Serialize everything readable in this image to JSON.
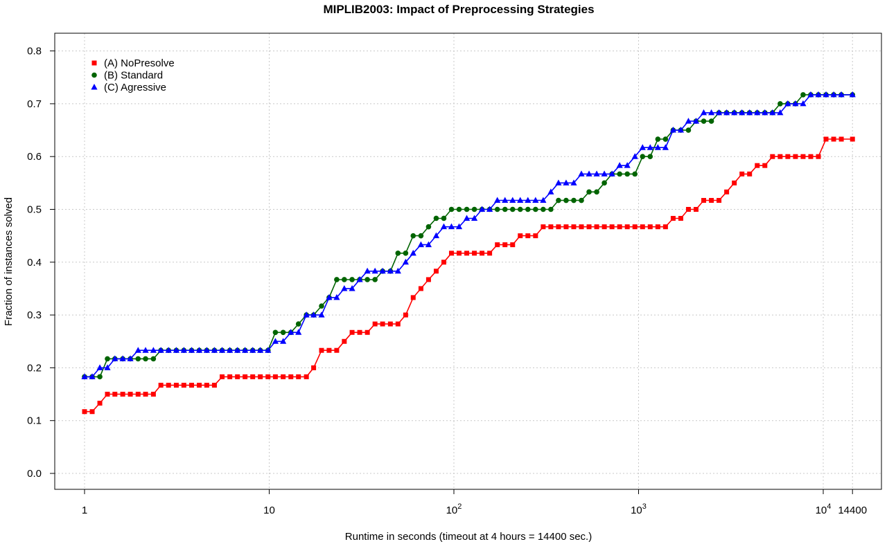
{
  "chart_data": {
    "type": "line",
    "title": "MIPLIB2003: Impact of Preprocessing Strategies",
    "xlabel": "Runtime in seconds (timeout at 4 hours = 14400 sec.)",
    "ylabel": "Fraction of instances solved",
    "x_scale": "log10",
    "xlim": [
      1,
      14400
    ],
    "ylim": [
      0,
      0.8
    ],
    "x_ticks": [
      {
        "value": 1,
        "label": "1"
      },
      {
        "value": 10,
        "label": "10"
      },
      {
        "value": 100,
        "label": "10",
        "sup": "2"
      },
      {
        "value": 1000,
        "label": "10",
        "sup": "3"
      },
      {
        "value": 10000,
        "label": "10",
        "sup": "4"
      },
      {
        "value": 14400,
        "label": "14400"
      }
    ],
    "y_ticks": [
      "0.0",
      "0.1",
      "0.2",
      "0.3",
      "0.4",
      "0.5",
      "0.6",
      "0.7",
      "0.8"
    ],
    "grid": true,
    "legend_position": "top-left",
    "x": [
      1.0,
      1.1,
      1.21,
      1.33,
      1.46,
      1.61,
      1.77,
      1.95,
      2.14,
      2.36,
      2.59,
      2.85,
      3.14,
      3.45,
      3.8,
      4.18,
      4.59,
      5.05,
      5.56,
      6.12,
      6.73,
      7.4,
      8.14,
      8.95,
      9.85,
      10.8,
      11.9,
      13.1,
      14.4,
      15.9,
      17.4,
      19.2,
      21.1,
      23.2,
      25.5,
      28.1,
      30.9,
      34.0,
      37.4,
      41.1,
      45.3,
      49.8,
      54.8,
      60.2,
      66.3,
      72.9,
      80.2,
      88.2,
      97.0,
      106.7,
      117.4,
      129.1,
      142,
      156.2,
      171.9,
      189.1,
      208,
      228.7,
      251.6,
      276.8,
      304.5,
      334.9,
      368.4,
      405.2,
      445.7,
      490.3,
      539.4,
      593.3,
      652.6,
      717.9,
      789.7,
      868.6,
      955.5,
      1051,
      1156,
      1272,
      1399,
      1539,
      1693,
      1862,
      2048,
      2253,
      2479,
      2726,
      2999,
      3299,
      3629,
      3992,
      4391,
      4830,
      5313,
      5844,
      6429,
      7072,
      7779,
      8557,
      9413,
      10354,
      11389,
      12528,
      14400
    ],
    "series": [
      {
        "name": "(A) NoPresolve",
        "color": "#ff0000",
        "marker": "square",
        "values": [
          0.117,
          0.117,
          0.133,
          0.15,
          0.15,
          0.15,
          0.15,
          0.15,
          0.15,
          0.15,
          0.167,
          0.167,
          0.167,
          0.167,
          0.167,
          0.167,
          0.167,
          0.167,
          0.183,
          0.183,
          0.183,
          0.183,
          0.183,
          0.183,
          0.183,
          0.183,
          0.183,
          0.183,
          0.183,
          0.183,
          0.2,
          0.233,
          0.233,
          0.233,
          0.25,
          0.267,
          0.267,
          0.267,
          0.283,
          0.283,
          0.283,
          0.283,
          0.3,
          0.333,
          0.35,
          0.367,
          0.383,
          0.4,
          0.417,
          0.417,
          0.417,
          0.417,
          0.417,
          0.417,
          0.433,
          0.433,
          0.433,
          0.45,
          0.45,
          0.45,
          0.467,
          0.467,
          0.467,
          0.467,
          0.467,
          0.467,
          0.467,
          0.467,
          0.467,
          0.467,
          0.467,
          0.467,
          0.467,
          0.467,
          0.467,
          0.467,
          0.467,
          0.483,
          0.483,
          0.5,
          0.5,
          0.517,
          0.517,
          0.517,
          0.533,
          0.55,
          0.567,
          0.567,
          0.583,
          0.583,
          0.6,
          0.6,
          0.6,
          0.6,
          0.6,
          0.6,
          0.6,
          0.633,
          0.633,
          0.633,
          0.633
        ]
      },
      {
        "name": "(B) Standard",
        "color": "#006400",
        "marker": "circle",
        "values": [
          0.183,
          0.183,
          0.183,
          0.217,
          0.217,
          0.217,
          0.217,
          0.217,
          0.217,
          0.217,
          0.233,
          0.233,
          0.233,
          0.233,
          0.233,
          0.233,
          0.233,
          0.233,
          0.233,
          0.233,
          0.233,
          0.233,
          0.233,
          0.233,
          0.233,
          0.267,
          0.267,
          0.267,
          0.283,
          0.3,
          0.3,
          0.317,
          0.333,
          0.367,
          0.367,
          0.367,
          0.367,
          0.367,
          0.367,
          0.383,
          0.383,
          0.417,
          0.417,
          0.45,
          0.45,
          0.467,
          0.483,
          0.483,
          0.5,
          0.5,
          0.5,
          0.5,
          0.5,
          0.5,
          0.5,
          0.5,
          0.5,
          0.5,
          0.5,
          0.5,
          0.5,
          0.5,
          0.517,
          0.517,
          0.517,
          0.517,
          0.533,
          0.533,
          0.55,
          0.567,
          0.567,
          0.567,
          0.567,
          0.6,
          0.6,
          0.633,
          0.633,
          0.65,
          0.65,
          0.65,
          0.667,
          0.667,
          0.667,
          0.683,
          0.683,
          0.683,
          0.683,
          0.683,
          0.683,
          0.683,
          0.683,
          0.7,
          0.7,
          0.7,
          0.717,
          0.717,
          0.717,
          0.717,
          0.717,
          0.717,
          0.717
        ]
      },
      {
        "name": "(C) Agressive",
        "color": "#0000ff",
        "marker": "triangle",
        "values": [
          0.183,
          0.183,
          0.2,
          0.2,
          0.217,
          0.217,
          0.217,
          0.233,
          0.233,
          0.233,
          0.233,
          0.233,
          0.233,
          0.233,
          0.233,
          0.233,
          0.233,
          0.233,
          0.233,
          0.233,
          0.233,
          0.233,
          0.233,
          0.233,
          0.233,
          0.25,
          0.25,
          0.267,
          0.267,
          0.3,
          0.3,
          0.3,
          0.333,
          0.333,
          0.35,
          0.35,
          0.367,
          0.383,
          0.383,
          0.383,
          0.383,
          0.383,
          0.4,
          0.417,
          0.433,
          0.433,
          0.45,
          0.467,
          0.467,
          0.467,
          0.483,
          0.483,
          0.5,
          0.5,
          0.517,
          0.517,
          0.517,
          0.517,
          0.517,
          0.517,
          0.517,
          0.533,
          0.55,
          0.55,
          0.55,
          0.567,
          0.567,
          0.567,
          0.567,
          0.567,
          0.583,
          0.583,
          0.6,
          0.617,
          0.617,
          0.617,
          0.617,
          0.65,
          0.65,
          0.667,
          0.667,
          0.683,
          0.683,
          0.683,
          0.683,
          0.683,
          0.683,
          0.683,
          0.683,
          0.683,
          0.683,
          0.683,
          0.7,
          0.7,
          0.7,
          0.717,
          0.717,
          0.717,
          0.717,
          0.717,
          0.717
        ]
      }
    ]
  }
}
